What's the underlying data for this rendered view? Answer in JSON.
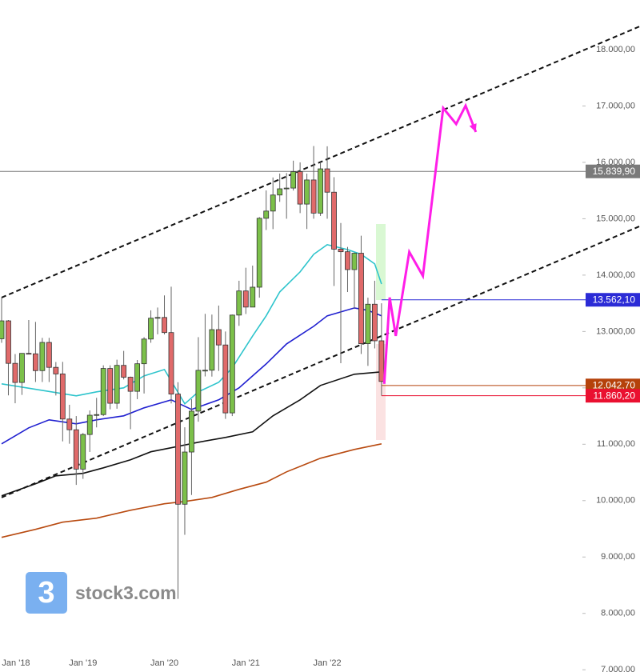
{
  "chart_data": {
    "type": "candlestick",
    "categories": [
      "Jan '18",
      null,
      null,
      null,
      null,
      null,
      null,
      null,
      null,
      null,
      null,
      null,
      "Jan '19",
      null,
      null,
      null,
      null,
      null,
      null,
      null,
      null,
      null,
      null,
      null,
      "Jan '20",
      null,
      null,
      null,
      null,
      null,
      null,
      null,
      null,
      null,
      null,
      null,
      "Jan '21",
      null,
      null,
      null,
      null,
      null,
      null,
      null,
      null,
      null,
      null,
      null,
      "Jan '22",
      null,
      null,
      null,
      null,
      null,
      null,
      null,
      null
    ],
    "open": [
      12871,
      13189,
      12435,
      12096,
      12612,
      12604,
      12306,
      12806,
      12364,
      12247,
      11447,
      11257,
      10559,
      11173,
      11515,
      11526,
      12344,
      11727,
      12399,
      12189,
      11939,
      12428,
      12866,
      13236,
      13249,
      12981,
      11890,
      9936,
      10862,
      11587,
      12311,
      12313,
      13033,
      12761,
      11556,
      13291,
      13719,
      13433,
      13786,
      15008,
      15136,
      15421,
      15531,
      15544,
      15835,
      15260,
      15688,
      15100,
      15885,
      15471,
      14461,
      14415,
      14098,
      14388,
      12784,
      13484,
      12835
    ],
    "high": [
      13597,
      13204,
      12600,
      12612,
      13204,
      13170,
      12887,
      12887,
      12458,
      12461,
      11700,
      11500,
      11200,
      11600,
      11823,
      12400,
      12400,
      12500,
      12656,
      12200,
      12494,
      12900,
      13375,
      13425,
      13640,
      13795,
      12100,
      11300,
      11800,
      12900,
      13313,
      13300,
      13460,
      13000,
      13300,
      13900,
      14131,
      14169,
      15030,
      15502,
      15732,
      15802,
      15810,
      16030,
      16000,
      15800,
      16290,
      16000,
      16285,
      15736,
      14925,
      14500,
      14400,
      14700,
      13600,
      13900,
      13500
    ],
    "low": [
      12800,
      11867,
      11727,
      11875,
      12600,
      12104,
      12104,
      12104,
      11865,
      11051,
      11009,
      10279,
      10386,
      10863,
      11299,
      11500,
      11620,
      11630,
      12150,
      11266,
      11800,
      11900,
      12800,
      12950,
      12948,
      11724,
      8256,
      9393,
      10100,
      11400,
      12203,
      12200,
      12300,
      11450,
      11500,
      13100,
      13310,
      13500,
      13600,
      14800,
      14816,
      15300,
      15000,
      15500,
      15100,
      14818,
      15000,
      15050,
      15000,
      13807,
      12438,
      13700,
      13400,
      12600,
      12390,
      12700,
      11862
    ],
    "close": [
      13189,
      12435,
      12096,
      12612,
      12604,
      12306,
      12806,
      12364,
      12247,
      11447,
      11257,
      10559,
      11173,
      11515,
      11526,
      12344,
      11727,
      12399,
      12189,
      11939,
      12428,
      12866,
      13236,
      13249,
      12981,
      11890,
      9936,
      10862,
      11587,
      12311,
      12313,
      13033,
      12761,
      11556,
      13291,
      13719,
      13433,
      13786,
      15008,
      15136,
      15421,
      15531,
      15544,
      15835,
      15260,
      15688,
      15100,
      15885,
      15471,
      14461,
      14415,
      14098,
      14388,
      12784,
      13484,
      12835,
      12114
    ],
    "up_color": "#7cc04a",
    "down_color": "#e06a6a",
    "series": [
      {
        "color": "#2ec4cc",
        "x": [
          0,
          11,
          14,
          18,
          21,
          24,
          27,
          29,
          32,
          34,
          37,
          39,
          41,
          44,
          46,
          48,
          51,
          53,
          55,
          56
        ],
        "values": [
          12071,
          11858,
          11929,
          12000,
          12213,
          12326,
          11716,
          11929,
          12099,
          12355,
          12922,
          13277,
          13702,
          14057,
          14369,
          14539,
          14453,
          14369,
          14198,
          13843
        ]
      },
      {
        "color": "#2020d0",
        "x": [
          0,
          4,
          7,
          11,
          14,
          18,
          21,
          25,
          28,
          32,
          35,
          39,
          42,
          46,
          48,
          52,
          54,
          56
        ],
        "values": [
          11007,
          11291,
          11433,
          11362,
          11433,
          11504,
          11645,
          11787,
          11617,
          11787,
          12000,
          12425,
          12780,
          13092,
          13277,
          13418,
          13376,
          13277
        ]
      },
      {
        "color": "#111111",
        "x": [
          0,
          5,
          8,
          12,
          15,
          19,
          22,
          25,
          29,
          33,
          37,
          40,
          44,
          47,
          52,
          56
        ],
        "values": [
          10086,
          10298,
          10440,
          10483,
          10582,
          10724,
          10866,
          10937,
          11036,
          11121,
          11220,
          11504,
          11787,
          12043,
          12241,
          12284
        ]
      },
      {
        "color": "#b84a10",
        "x": [
          0,
          5,
          9,
          14,
          19,
          24,
          27,
          31,
          35,
          39,
          42,
          47,
          52,
          56
        ],
        "values": [
          9348,
          9490,
          9618,
          9689,
          9830,
          9944,
          9986,
          10057,
          10199,
          10327,
          10511,
          10752,
          10908,
          11007
        ]
      }
    ],
    "trendlines": [
      {
        "x": [
          0,
          94.3
        ],
        "values": [
          13602,
          18424
        ],
        "color": "#111111"
      },
      {
        "x": [
          0,
          94.3
        ],
        "values": [
          10057,
          14879
        ],
        "color": "#111111"
      }
    ],
    "projection": {
      "color": "#ff1ee8",
      "x": [
        56.4,
        57.2,
        58.1,
        60.1,
        62.1,
        65.1,
        67,
        68.4,
        69.9
      ],
      "values": [
        12071,
        13602,
        12922,
        14411,
        13985,
        16963,
        16680,
        17006,
        16538
      ]
    },
    "levels": [
      {
        "value": 15839.9,
        "label": "15.839,90",
        "color": "#7a7a7a"
      },
      {
        "value": 13562.1,
        "label": "13.562,10",
        "color": "#2b2bd6"
      },
      {
        "value": 12042.7,
        "label": "12.042,70",
        "color": "#b5420b"
      },
      {
        "value": 11860.2,
        "label": "11.860,20",
        "color": "#ea1030"
      }
    ],
    "ylim": [
      6960,
      18880
    ],
    "yticks": [
      {
        "value": 7000,
        "label": "7.000,00"
      },
      {
        "value": 8000,
        "label": "8.000,00"
      },
      {
        "value": 9000,
        "label": "9.000,00"
      },
      {
        "value": 10000,
        "label": "10.000,00"
      },
      {
        "value": 11000,
        "label": "11.000,00"
      },
      {
        "value": 12000,
        "label": "12.000,00"
      },
      {
        "value": 13000,
        "label": "13.000,00"
      },
      {
        "value": 14000,
        "label": "14.000,00"
      },
      {
        "value": 15000,
        "label": "15.000,00"
      },
      {
        "value": 16000,
        "label": "16.000,00"
      },
      {
        "value": 17000,
        "label": "17.000,00"
      },
      {
        "value": 18000,
        "label": "18.000,00"
      }
    ],
    "watermark": "stock3.com",
    "logo_glyph": "3"
  }
}
